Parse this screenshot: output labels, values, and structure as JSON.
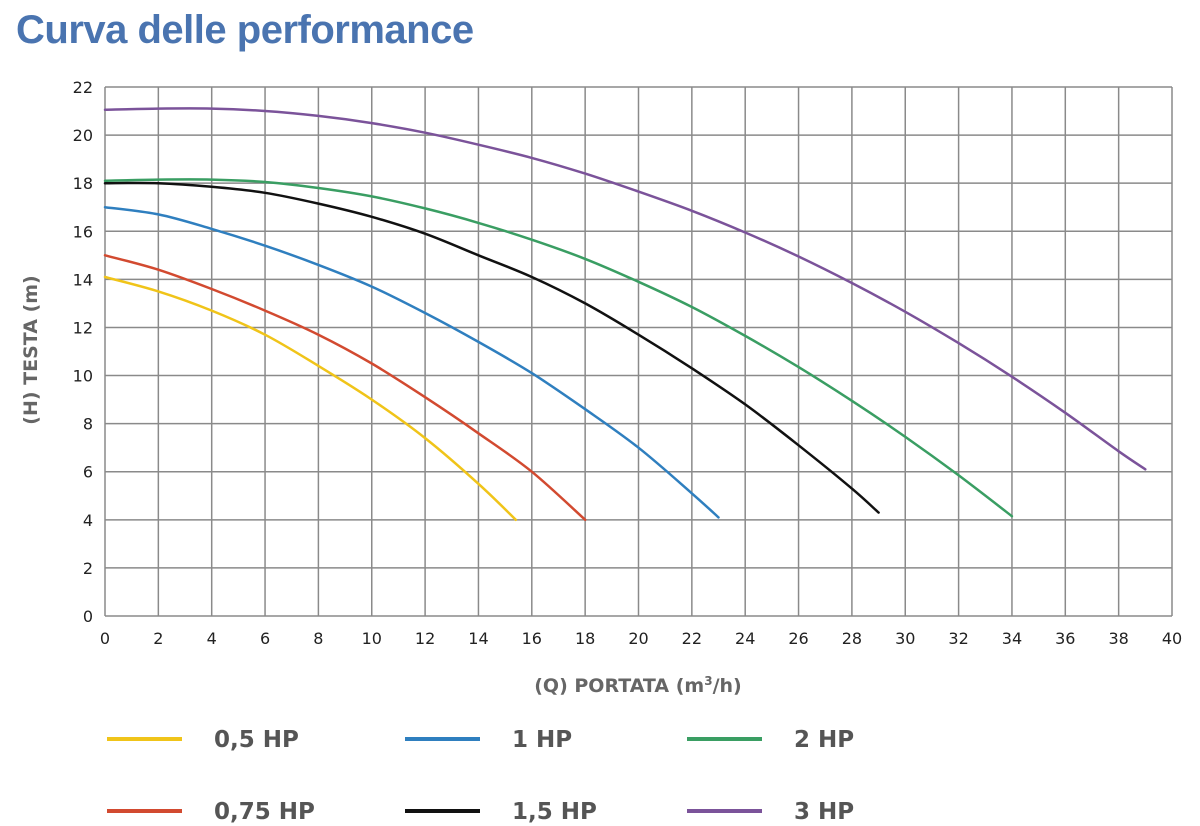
{
  "chart_data": {
    "type": "line",
    "title": "Curva delle performance",
    "xlabel_main": "(Q) PORTATA (m",
    "xlabel_sup": "3",
    "xlabel_tail": "/h)",
    "ylabel": "(H) TESTA (m)",
    "xlim": [
      0,
      40
    ],
    "ylim": [
      0,
      22
    ],
    "xticks": [
      0,
      2,
      4,
      6,
      8,
      10,
      12,
      14,
      16,
      18,
      20,
      22,
      24,
      26,
      28,
      30,
      32,
      34,
      36,
      38,
      40
    ],
    "yticks": [
      0,
      2,
      4,
      6,
      8,
      10,
      12,
      14,
      16,
      18,
      20,
      22
    ],
    "grid": true,
    "legend_position": "bottom",
    "series": [
      {
        "name": "0,5 HP",
        "color": "#f0c419",
        "points": [
          [
            0,
            14.1
          ],
          [
            2,
            13.5
          ],
          [
            4,
            12.7
          ],
          [
            6,
            11.7
          ],
          [
            8,
            10.4
          ],
          [
            10,
            9.0
          ],
          [
            12,
            7.4
          ],
          [
            14,
            5.5
          ],
          [
            15.4,
            4.0
          ]
        ]
      },
      {
        "name": "0,75 HP",
        "color": "#d24a30",
        "points": [
          [
            0,
            15.0
          ],
          [
            2,
            14.4
          ],
          [
            4,
            13.6
          ],
          [
            6,
            12.7
          ],
          [
            8,
            11.7
          ],
          [
            10,
            10.5
          ],
          [
            12,
            9.1
          ],
          [
            14,
            7.6
          ],
          [
            16,
            6.0
          ],
          [
            18,
            4.0
          ]
        ]
      },
      {
        "name": "1 HP",
        "color": "#2f7fbf",
        "points": [
          [
            0,
            17.0
          ],
          [
            2,
            16.7
          ],
          [
            4,
            16.1
          ],
          [
            6,
            15.4
          ],
          [
            8,
            14.6
          ],
          [
            10,
            13.7
          ],
          [
            12,
            12.6
          ],
          [
            14,
            11.4
          ],
          [
            16,
            10.1
          ],
          [
            18,
            8.6
          ],
          [
            20,
            7.0
          ],
          [
            22,
            5.1
          ],
          [
            23,
            4.1
          ]
        ]
      },
      {
        "name": "1,5 HP",
        "color": "#111111",
        "points": [
          [
            0,
            18.0
          ],
          [
            2,
            18.0
          ],
          [
            4,
            17.85
          ],
          [
            6,
            17.6
          ],
          [
            8,
            17.15
          ],
          [
            10,
            16.6
          ],
          [
            12,
            15.9
          ],
          [
            14,
            15.0
          ],
          [
            16,
            14.1
          ],
          [
            18,
            13.0
          ],
          [
            20,
            11.7
          ],
          [
            22,
            10.3
          ],
          [
            24,
            8.8
          ],
          [
            26,
            7.1
          ],
          [
            28,
            5.3
          ],
          [
            29,
            4.3
          ]
        ]
      },
      {
        "name": "2 HP",
        "color": "#3a9e63",
        "points": [
          [
            0,
            18.1
          ],
          [
            2,
            18.15
          ],
          [
            4,
            18.15
          ],
          [
            6,
            18.05
          ],
          [
            8,
            17.8
          ],
          [
            10,
            17.45
          ],
          [
            12,
            16.95
          ],
          [
            14,
            16.35
          ],
          [
            16,
            15.65
          ],
          [
            18,
            14.85
          ],
          [
            20,
            13.9
          ],
          [
            22,
            12.85
          ],
          [
            24,
            11.65
          ],
          [
            26,
            10.35
          ],
          [
            28,
            8.95
          ],
          [
            30,
            7.45
          ],
          [
            32,
            5.85
          ],
          [
            34,
            4.15
          ]
        ]
      },
      {
        "name": "3 HP",
        "color": "#7b539a",
        "points": [
          [
            0,
            21.05
          ],
          [
            2,
            21.1
          ],
          [
            4,
            21.1
          ],
          [
            6,
            21.0
          ],
          [
            8,
            20.8
          ],
          [
            10,
            20.5
          ],
          [
            12,
            20.1
          ],
          [
            14,
            19.6
          ],
          [
            16,
            19.05
          ],
          [
            18,
            18.4
          ],
          [
            20,
            17.65
          ],
          [
            22,
            16.85
          ],
          [
            24,
            15.95
          ],
          [
            26,
            14.95
          ],
          [
            28,
            13.85
          ],
          [
            30,
            12.65
          ],
          [
            32,
            11.35
          ],
          [
            34,
            9.95
          ],
          [
            36,
            8.45
          ],
          [
            38,
            6.85
          ],
          [
            39,
            6.1
          ]
        ]
      }
    ]
  }
}
